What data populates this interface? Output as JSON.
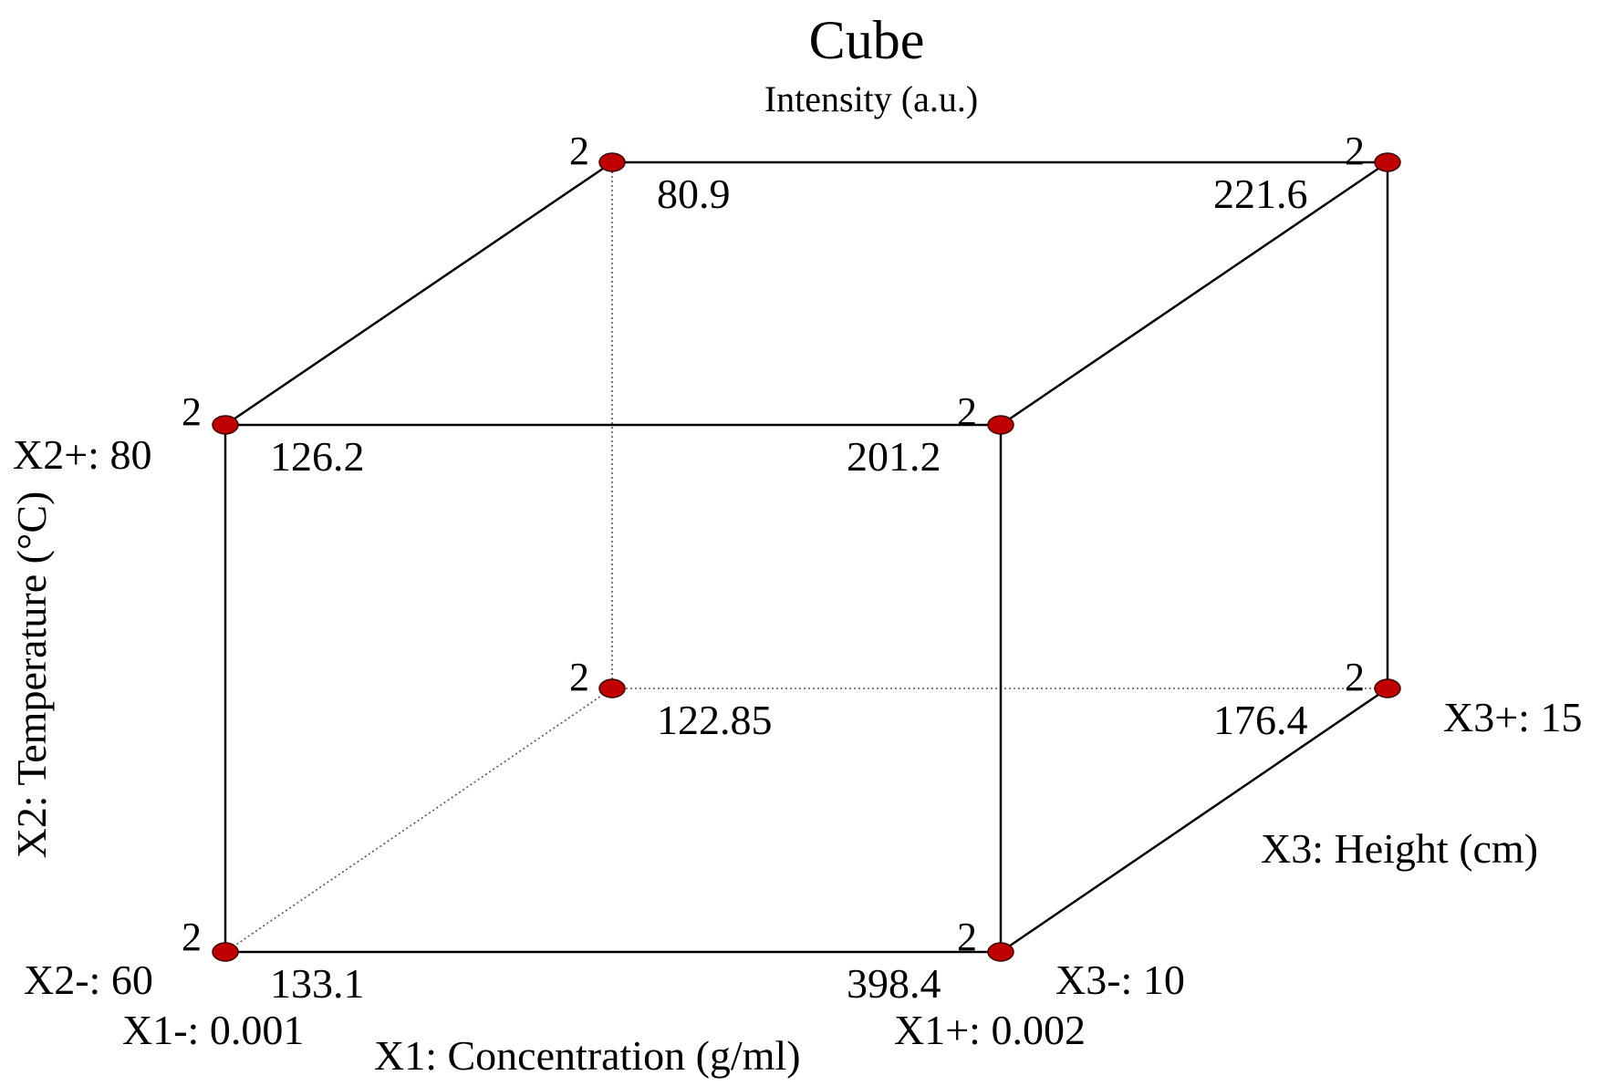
{
  "title": "Cube",
  "subtitle": "Intensity (a.u.)",
  "colors": {
    "point": "#c00000",
    "line": "#000000"
  },
  "axes": {
    "x1": {
      "label": "X1: Concentration (g/ml)",
      "low": "X1-: 0.001",
      "high": "X1+: 0.002"
    },
    "x2": {
      "label": "X2: Temperature (°C)",
      "low": "X2-: 60",
      "high": "X2+: 80"
    },
    "x3": {
      "label": "X3: Height (cm)",
      "low": "X3-: 10",
      "high": "X3+: 15"
    }
  },
  "corners": [
    {
      "id": "x1lo-x2lo-x3lo",
      "x1": "-",
      "x2": "-",
      "x3": "-",
      "value": "133.1",
      "replicates": "2"
    },
    {
      "id": "x1hi-x2lo-x3lo",
      "x1": "+",
      "x2": "-",
      "x3": "-",
      "value": "398.4",
      "replicates": "2"
    },
    {
      "id": "x1lo-x2hi-x3lo",
      "x1": "-",
      "x2": "+",
      "x3": "-",
      "value": "126.2",
      "replicates": "2"
    },
    {
      "id": "x1hi-x2hi-x3lo",
      "x1": "+",
      "x2": "+",
      "x3": "-",
      "value": "201.2",
      "replicates": "2"
    },
    {
      "id": "x1lo-x2lo-x3hi",
      "x1": "-",
      "x2": "-",
      "x3": "+",
      "value": "122.85",
      "replicates": "2"
    },
    {
      "id": "x1hi-x2lo-x3hi",
      "x1": "+",
      "x2": "-",
      "x3": "+",
      "value": "176.4",
      "replicates": "2"
    },
    {
      "id": "x1lo-x2hi-x3hi",
      "x1": "-",
      "x2": "+",
      "x3": "+",
      "value": "80.9",
      "replicates": "2"
    },
    {
      "id": "x1hi-x2hi-x3hi",
      "x1": "+",
      "x2": "+",
      "x3": "+",
      "value": "221.6",
      "replicates": "2"
    }
  ]
}
